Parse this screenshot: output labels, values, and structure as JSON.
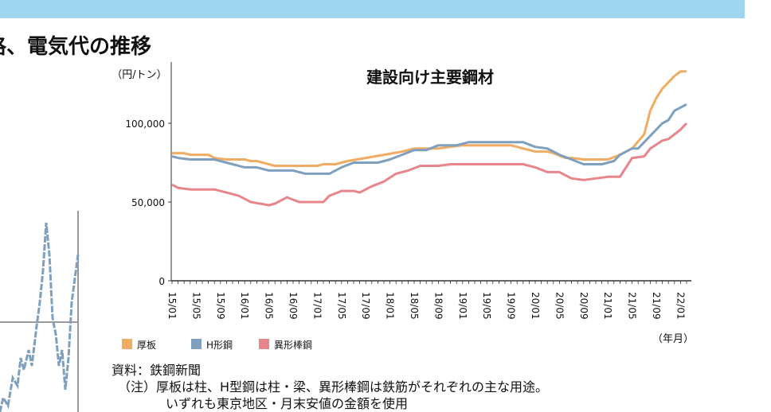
{
  "page": {
    "title": "格、電気代の推移",
    "banner_color": "#9fd5ee"
  },
  "chart_data": {
    "type": "line",
    "title": "建設向け主要鋼材",
    "ylabel": "（円/トン）",
    "xlabel": "（年月）",
    "ylim": [
      0,
      140000
    ],
    "yticks": [
      0,
      50000,
      100000
    ],
    "ytick_labels": [
      "0",
      "50,000",
      "100,000"
    ],
    "xticks": [
      "15/01",
      "15/05",
      "15/09",
      "16/01",
      "16/05",
      "16/09",
      "17/01",
      "17/05",
      "17/09",
      "18/01",
      "18/05",
      "18/09",
      "19/01",
      "19/05",
      "19/09",
      "20/01",
      "20/05",
      "20/09",
      "21/01",
      "21/05",
      "21/09",
      "22/01"
    ],
    "x_range": [
      "15/01",
      "22/02"
    ],
    "grid": false,
    "legend_placement": "bottom-left",
    "series": [
      {
        "name": "厚板",
        "color": "#f0ac62",
        "points": [
          [
            "15/01",
            81000
          ],
          [
            "15/03",
            81000
          ],
          [
            "15/04",
            80000
          ],
          [
            "15/07",
            80000
          ],
          [
            "15/08",
            78000
          ],
          [
            "15/10",
            77000
          ],
          [
            "16/01",
            77000
          ],
          [
            "16/02",
            76000
          ],
          [
            "16/03",
            76000
          ],
          [
            "16/06",
            73000
          ],
          [
            "17/01",
            73000
          ],
          [
            "17/02",
            74000
          ],
          [
            "17/04",
            74000
          ],
          [
            "17/06",
            76000
          ],
          [
            "17/09",
            78000
          ],
          [
            "17/12",
            80000
          ],
          [
            "18/03",
            82000
          ],
          [
            "18/05",
            84000
          ],
          [
            "18/09",
            84000
          ],
          [
            "18/11",
            85000
          ],
          [
            "19/01",
            86000
          ],
          [
            "19/09",
            86000
          ],
          [
            "19/11",
            84000
          ],
          [
            "20/01",
            82000
          ],
          [
            "20/03",
            82000
          ],
          [
            "20/04",
            81000
          ],
          [
            "20/06",
            78000
          ],
          [
            "20/07",
            78000
          ],
          [
            "20/09",
            77000
          ],
          [
            "21/01",
            77000
          ],
          [
            "21/03",
            80000
          ],
          [
            "21/05",
            84000
          ],
          [
            "21/07",
            93000
          ],
          [
            "21/08",
            108000
          ],
          [
            "21/09",
            116000
          ],
          [
            "21/10",
            122000
          ],
          [
            "21/12",
            130000
          ],
          [
            "22/01",
            133000
          ],
          [
            "22/02",
            133000
          ]
        ]
      },
      {
        "name": "H形鋼",
        "color": "#7f9fbf",
        "points": [
          [
            "15/01",
            79000
          ],
          [
            "15/02",
            78000
          ],
          [
            "15/04",
            77000
          ],
          [
            "15/08",
            77000
          ],
          [
            "15/10",
            75000
          ],
          [
            "16/01",
            72000
          ],
          [
            "16/03",
            72000
          ],
          [
            "16/05",
            70000
          ],
          [
            "16/09",
            70000
          ],
          [
            "16/11",
            68000
          ],
          [
            "17/03",
            68000
          ],
          [
            "17/05",
            72000
          ],
          [
            "17/07",
            75000
          ],
          [
            "17/11",
            75000
          ],
          [
            "18/01",
            77000
          ],
          [
            "18/03",
            80000
          ],
          [
            "18/05",
            83000
          ],
          [
            "18/07",
            83000
          ],
          [
            "18/09",
            86000
          ],
          [
            "18/12",
            86000
          ],
          [
            "19/02",
            88000
          ],
          [
            "19/11",
            88000
          ],
          [
            "20/01",
            85000
          ],
          [
            "20/03",
            84000
          ],
          [
            "20/05",
            80000
          ],
          [
            "20/07",
            77000
          ],
          [
            "20/09",
            74000
          ],
          [
            "20/12",
            74000
          ],
          [
            "21/02",
            76000
          ],
          [
            "21/03",
            80000
          ],
          [
            "21/05",
            84000
          ],
          [
            "21/06",
            84000
          ],
          [
            "21/08",
            92000
          ],
          [
            "21/10",
            100000
          ],
          [
            "21/11",
            102000
          ],
          [
            "21/12",
            108000
          ],
          [
            "22/01",
            110000
          ],
          [
            "22/02",
            112000
          ]
        ]
      },
      {
        "name": "異形棒鋼",
        "color": "#e8858a",
        "points": [
          [
            "15/01",
            61000
          ],
          [
            "15/02",
            59000
          ],
          [
            "15/04",
            58000
          ],
          [
            "15/08",
            58000
          ],
          [
            "15/10",
            56000
          ],
          [
            "15/12",
            54000
          ],
          [
            "16/02",
            50000
          ],
          [
            "16/05",
            48000
          ],
          [
            "16/06",
            49000
          ],
          [
            "16/08",
            53000
          ],
          [
            "16/10",
            50000
          ],
          [
            "17/02",
            50000
          ],
          [
            "17/03",
            54000
          ],
          [
            "17/05",
            57000
          ],
          [
            "17/07",
            57000
          ],
          [
            "17/08",
            56000
          ],
          [
            "17/10",
            60000
          ],
          [
            "17/12",
            63000
          ],
          [
            "18/02",
            68000
          ],
          [
            "18/04",
            70000
          ],
          [
            "18/06",
            73000
          ],
          [
            "18/09",
            73000
          ],
          [
            "18/11",
            74000
          ],
          [
            "19/11",
            74000
          ],
          [
            "20/01",
            72000
          ],
          [
            "20/03",
            69000
          ],
          [
            "20/05",
            69000
          ],
          [
            "20/07",
            65000
          ],
          [
            "20/09",
            64000
          ],
          [
            "20/11",
            65000
          ],
          [
            "21/01",
            66000
          ],
          [
            "21/03",
            66000
          ],
          [
            "21/05",
            78000
          ],
          [
            "21/07",
            79000
          ],
          [
            "21/08",
            84000
          ],
          [
            "21/10",
            89000
          ],
          [
            "21/11",
            90000
          ],
          [
            "21/12",
            93000
          ],
          [
            "22/01",
            96000
          ],
          [
            "22/02",
            100000
          ]
        ]
      }
    ]
  },
  "notes": {
    "source": "資料：鉄鋼新聞",
    "note_line1": "（注）厚板は柱、H型鋼は柱・梁、異形棒鋼は鉄筋がそれぞれの主な用途。",
    "note_line2": "いずれも東京地区・月末安値の金額を使用"
  }
}
